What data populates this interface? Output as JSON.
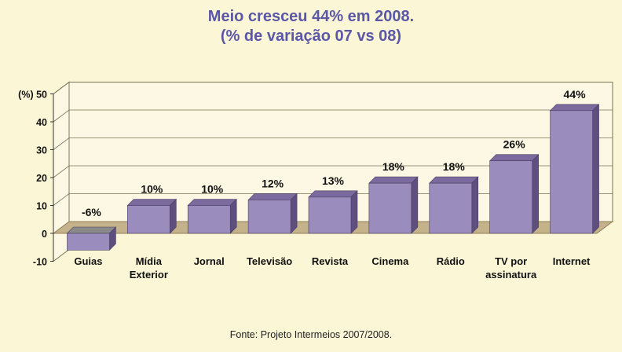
{
  "chart_data": {
    "type": "bar",
    "title": "Meio cresceu 44% em 2008.",
    "subtitle": "(% de variação 07 vs 08)",
    "ylabel": "(%)",
    "ylim": [
      -10,
      50
    ],
    "yticks": [
      -10,
      0,
      10,
      20,
      30,
      40,
      50
    ],
    "grid": true,
    "categories": [
      [
        "Guias"
      ],
      [
        "Mídia",
        "Exterior"
      ],
      [
        "Jornal"
      ],
      [
        "Televisão"
      ],
      [
        "Revista"
      ],
      [
        "Cinema"
      ],
      [
        "Rádio"
      ],
      [
        "TV por",
        "assinatura"
      ],
      [
        "Internet"
      ]
    ],
    "values": [
      -6,
      10,
      10,
      12,
      13,
      18,
      18,
      26,
      44
    ],
    "data_labels": [
      "-6%",
      "10%",
      "10%",
      "12%",
      "13%",
      "18%",
      "18%",
      "26%",
      "44%"
    ],
    "colors": {
      "bar_front": "#9a8cbc",
      "bar_top": "#7b6a9e",
      "bar_side": "#5e4f7e",
      "floor": "#c4b28a",
      "wall": "#fcf8e4",
      "grid": "#7a7356",
      "title": "#5b57a8"
    }
  },
  "source": "Fonte: Projeto Intermeios 2007/2008."
}
